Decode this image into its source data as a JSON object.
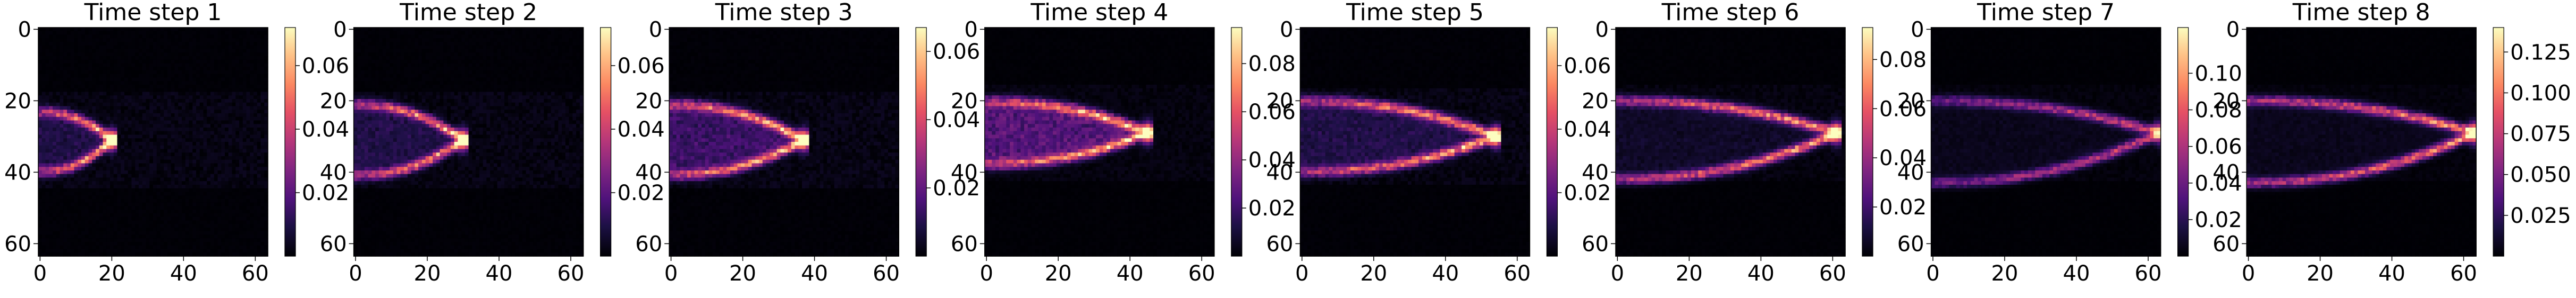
{
  "chart_data": [
    {
      "type": "heatmap",
      "title": "Time step 1",
      "colormap": "magma",
      "x_ticks": [
        0,
        20,
        40,
        60
      ],
      "y_ticks": [
        0,
        20,
        40,
        60
      ],
      "grid_size": [
        64,
        64
      ],
      "colorbar": {
        "min": 0.0,
        "max": 0.072,
        "ticks": [
          0.02,
          0.04,
          0.06
        ],
        "tick_labels": [
          "0.02",
          "0.04",
          "0.06"
        ]
      },
      "plume": {
        "tip_x": 20,
        "center_y": 31,
        "upper_y": 23,
        "lower_y": 40,
        "peak": 0.07,
        "fill": 0.01
      }
    },
    {
      "type": "heatmap",
      "title": "Time step 2",
      "colormap": "magma",
      "x_ticks": [
        0,
        20,
        40,
        60
      ],
      "y_ticks": [
        0,
        20,
        40,
        60
      ],
      "grid_size": [
        64,
        64
      ],
      "colorbar": {
        "min": 0.0,
        "max": 0.072,
        "ticks": [
          0.02,
          0.04,
          0.06
        ],
        "tick_labels": [
          "0.02",
          "0.04",
          "0.06"
        ]
      },
      "plume": {
        "tip_x": 30,
        "center_y": 31,
        "upper_y": 21,
        "lower_y": 41,
        "peak": 0.07,
        "fill": 0.01
      }
    },
    {
      "type": "heatmap",
      "title": "Time step 3",
      "colormap": "magma",
      "x_ticks": [
        0,
        20,
        40,
        60
      ],
      "y_ticks": [
        0,
        20,
        40,
        60
      ],
      "grid_size": [
        64,
        64
      ],
      "colorbar": {
        "min": 0.0,
        "max": 0.067,
        "ticks": [
          0.02,
          0.04,
          0.06
        ],
        "tick_labels": [
          "0.02",
          "0.04",
          "0.06"
        ]
      },
      "plume": {
        "tip_x": 37,
        "center_y": 31,
        "upper_y": 21,
        "lower_y": 41,
        "peak": 0.065,
        "fill": 0.015
      }
    },
    {
      "type": "heatmap",
      "title": "Time step 4",
      "colormap": "magma",
      "x_ticks": [
        0,
        20,
        40,
        60
      ],
      "y_ticks": [
        0,
        20,
        40,
        60
      ],
      "grid_size": [
        64,
        64
      ],
      "colorbar": {
        "min": 0.0,
        "max": 0.095,
        "ticks": [
          0.02,
          0.04,
          0.06,
          0.08
        ],
        "tick_labels": [
          "0.02",
          "0.04",
          "0.06",
          "0.08"
        ]
      },
      "plume": {
        "tip_x": 45,
        "center_y": 29,
        "upper_y": 20,
        "lower_y": 38,
        "peak": 0.09,
        "fill": 0.03
      }
    },
    {
      "type": "heatmap",
      "title": "Time step 5",
      "colormap": "magma",
      "x_ticks": [
        0,
        20,
        40,
        60
      ],
      "y_ticks": [
        0,
        20,
        40,
        60
      ],
      "grid_size": [
        64,
        64
      ],
      "colorbar": {
        "min": 0.0,
        "max": 0.072,
        "ticks": [
          0.02,
          0.04,
          0.06
        ],
        "tick_labels": [
          "0.02",
          "0.04",
          "0.06"
        ]
      },
      "plume": {
        "tip_x": 54,
        "center_y": 30,
        "upper_y": 20,
        "lower_y": 40,
        "peak": 0.07,
        "fill": 0.01
      }
    },
    {
      "type": "heatmap",
      "title": "Time step 6",
      "colormap": "magma",
      "x_ticks": [
        0,
        20,
        40,
        60
      ],
      "y_ticks": [
        0,
        20,
        40,
        60
      ],
      "grid_size": [
        64,
        64
      ],
      "colorbar": {
        "min": 0.0,
        "max": 0.093,
        "ticks": [
          0.02,
          0.04,
          0.06,
          0.08
        ],
        "tick_labels": [
          "0.02",
          "0.04",
          "0.06",
          "0.08"
        ]
      },
      "plume": {
        "tip_x": 61,
        "center_y": 29,
        "upper_y": 20,
        "lower_y": 42,
        "peak": 0.09,
        "fill": 0.006
      }
    },
    {
      "type": "heatmap",
      "title": "Time step 7",
      "colormap": "magma",
      "x_ticks": [
        0,
        20,
        40,
        60
      ],
      "y_ticks": [
        0,
        20,
        40,
        60
      ],
      "grid_size": [
        64,
        64
      ],
      "colorbar": {
        "min": 0.0,
        "max": 0.125,
        "ticks": [
          0.02,
          0.04,
          0.06,
          0.08,
          0.1
        ],
        "tick_labels": [
          "0.02",
          "0.04",
          "0.06",
          "0.08",
          "0.10"
        ]
      },
      "plume": {
        "tip_x": 63,
        "center_y": 29,
        "upper_y": 20,
        "lower_y": 43,
        "peak": 0.085,
        "fill": 0.005
      }
    },
    {
      "type": "heatmap",
      "title": "Time step 8",
      "colormap": "magma",
      "x_ticks": [
        0,
        20,
        40,
        60
      ],
      "y_ticks": [
        0,
        20,
        40,
        60
      ],
      "grid_size": [
        64,
        64
      ],
      "colorbar": {
        "min": 0.0,
        "max": 0.14,
        "ticks": [
          0.025,
          0.05,
          0.075,
          0.1,
          0.125
        ],
        "tick_labels": [
          "0.025",
          "0.050",
          "0.075",
          "0.100",
          "0.125"
        ]
      },
      "plume": {
        "tip_x": 63,
        "center_y": 29,
        "upper_y": 20,
        "lower_y": 43,
        "peak": 0.13,
        "fill": 0.006
      }
    }
  ]
}
